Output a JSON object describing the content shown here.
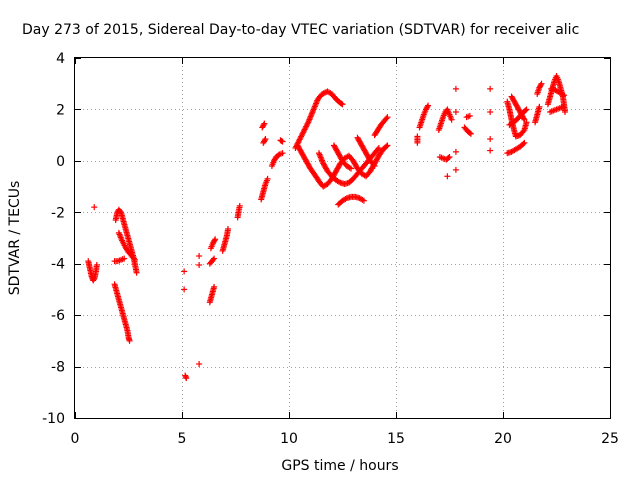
{
  "chart_data": {
    "type": "scatter",
    "title": "Day 273 of 2015, Sidereal Day-to-day VTEC variation (SDTVAR) for receiver alic",
    "xlabel": "GPS time / hours",
    "ylabel": "SDTVAR / TECUs",
    "xlim": [
      0,
      25
    ],
    "ylim": [
      -10,
      4
    ],
    "xticks": [
      0,
      5,
      10,
      15,
      20,
      25
    ],
    "yticks": [
      -10,
      -8,
      -6,
      -4,
      -2,
      0,
      2,
      4
    ],
    "grid": true,
    "marker": "plus",
    "color": "#ff0000",
    "series": [
      {
        "segments": [
          [
            [
              0.62,
              -3.9
            ],
            [
              0.7,
              -4.2
            ],
            [
              0.78,
              -4.5
            ],
            [
              0.85,
              -4.65
            ],
            [
              0.92,
              -4.55
            ],
            [
              0.98,
              -4.3
            ],
            [
              1.02,
              -4.05
            ]
          ],
          [
            [
              0.9,
              -1.8
            ]
          ],
          [
            [
              1.85,
              -3.9
            ],
            [
              2.0,
              -3.9
            ],
            [
              2.15,
              -3.85
            ],
            [
              2.3,
              -3.8
            ]
          ],
          [
            [
              1.9,
              -2.3
            ],
            [
              1.98,
              -2.0
            ],
            [
              2.05,
              -1.9
            ],
            [
              2.15,
              -2.0
            ],
            [
              2.25,
              -2.3
            ],
            [
              2.35,
              -2.6
            ],
            [
              2.45,
              -2.9
            ],
            [
              2.55,
              -3.2
            ],
            [
              2.65,
              -3.5
            ],
            [
              2.75,
              -3.8
            ],
            [
              2.82,
              -4.1
            ],
            [
              2.88,
              -4.35
            ]
          ],
          [
            [
              2.05,
              -2.8
            ],
            [
              2.2,
              -3.1
            ],
            [
              2.35,
              -3.35
            ],
            [
              2.5,
              -3.55
            ],
            [
              2.65,
              -3.7
            ],
            [
              2.8,
              -3.85
            ]
          ],
          [
            [
              1.85,
              -4.8
            ],
            [
              1.95,
              -5.1
            ],
            [
              2.05,
              -5.4
            ],
            [
              2.15,
              -5.7
            ],
            [
              2.25,
              -6.0
            ],
            [
              2.35,
              -6.3
            ],
            [
              2.45,
              -6.6
            ],
            [
              2.5,
              -6.85
            ],
            [
              2.55,
              -7.0
            ]
          ],
          [
            [
              5.1,
              -4.3
            ]
          ],
          [
            [
              5.1,
              -5.0
            ]
          ],
          [
            [
              5.15,
              -8.35
            ],
            [
              5.2,
              -8.45
            ]
          ],
          [
            [
              5.8,
              -3.7
            ]
          ],
          [
            [
              5.8,
              -4.05
            ]
          ],
          [
            [
              5.8,
              -7.9
            ]
          ],
          [
            [
              6.3,
              -5.5
            ],
            [
              6.4,
              -5.2
            ],
            [
              6.5,
              -4.9
            ]
          ],
          [
            [
              6.3,
              -4.0
            ],
            [
              6.4,
              -3.9
            ],
            [
              6.5,
              -3.8
            ]
          ],
          [
            [
              6.35,
              -3.4
            ],
            [
              6.45,
              -3.2
            ],
            [
              6.55,
              -3.05
            ]
          ],
          [
            [
              6.9,
              -3.5
            ],
            [
              7.0,
              -3.2
            ],
            [
              7.1,
              -2.9
            ],
            [
              7.15,
              -2.65
            ]
          ],
          [
            [
              7.6,
              -2.2
            ],
            [
              7.65,
              -1.95
            ],
            [
              7.7,
              -1.75
            ]
          ],
          [
            [
              8.7,
              -1.5
            ],
            [
              8.8,
              -1.2
            ],
            [
              8.9,
              -0.9
            ],
            [
              9.0,
              -0.7
            ]
          ],
          [
            [
              8.75,
              1.3
            ],
            [
              8.85,
              1.45
            ]
          ],
          [
            [
              8.8,
              0.7
            ],
            [
              8.9,
              0.85
            ]
          ],
          [
            [
              9.2,
              -0.2
            ],
            [
              9.3,
              0.0
            ],
            [
              9.4,
              0.15
            ],
            [
              9.55,
              0.25
            ],
            [
              9.7,
              0.3
            ]
          ],
          [
            [
              9.6,
              0.8
            ],
            [
              9.7,
              0.75
            ]
          ],
          [
            [
              10.3,
              0.5
            ],
            [
              10.6,
              1.0
            ],
            [
              10.9,
              1.5
            ],
            [
              11.15,
              2.0
            ],
            [
              11.35,
              2.4
            ],
            [
              11.55,
              2.6
            ],
            [
              11.8,
              2.7
            ],
            [
              12.0,
              2.6
            ],
            [
              12.2,
              2.4
            ],
            [
              12.4,
              2.25
            ],
            [
              12.5,
              2.2
            ]
          ],
          [
            [
              10.4,
              0.6
            ],
            [
              10.6,
              0.3
            ],
            [
              10.8,
              0.0
            ],
            [
              11.0,
              -0.3
            ],
            [
              11.25,
              -0.6
            ],
            [
              11.45,
              -0.85
            ],
            [
              11.6,
              -1.0
            ],
            [
              11.8,
              -0.9
            ],
            [
              12.0,
              -0.7
            ],
            [
              12.2,
              -0.4
            ],
            [
              12.4,
              -0.1
            ],
            [
              12.6,
              0.1
            ],
            [
              12.8,
              0.2
            ],
            [
              13.0,
              0.0
            ],
            [
              13.2,
              -0.3
            ],
            [
              13.4,
              -0.5
            ],
            [
              13.6,
              -0.6
            ],
            [
              13.8,
              -0.4
            ],
            [
              14.0,
              -0.1
            ],
            [
              14.2,
              0.2
            ],
            [
              14.4,
              0.45
            ],
            [
              14.6,
              0.6
            ]
          ],
          [
            [
              11.4,
              0.3
            ],
            [
              11.6,
              -0.1
            ],
            [
              11.8,
              -0.4
            ],
            [
              12.0,
              -0.6
            ],
            [
              12.2,
              -0.75
            ],
            [
              12.4,
              -0.85
            ],
            [
              12.6,
              -0.9
            ],
            [
              12.8,
              -0.85
            ],
            [
              13.0,
              -0.7
            ],
            [
              13.2,
              -0.5
            ],
            [
              13.4,
              -0.3
            ],
            [
              13.6,
              -0.1
            ],
            [
              13.8,
              0.1
            ],
            [
              14.0,
              0.3
            ],
            [
              14.2,
              0.5
            ]
          ],
          [
            [
              12.1,
              0.6
            ],
            [
              12.3,
              0.3
            ],
            [
              12.5,
              0.0
            ],
            [
              12.7,
              -0.2
            ],
            [
              12.9,
              -0.3
            ]
          ],
          [
            [
              13.2,
              0.9
            ],
            [
              13.4,
              0.6
            ],
            [
              13.6,
              0.3
            ],
            [
              13.8,
              0.0
            ],
            [
              14.0,
              -0.2
            ]
          ],
          [
            [
              14.0,
              1.0
            ],
            [
              14.15,
              1.2
            ],
            [
              14.3,
              1.4
            ],
            [
              14.45,
              1.55
            ],
            [
              14.6,
              1.7
            ]
          ],
          [
            [
              12.3,
              -1.7
            ],
            [
              12.5,
              -1.55
            ],
            [
              12.7,
              -1.45
            ],
            [
              12.9,
              -1.4
            ],
            [
              13.1,
              -1.4
            ],
            [
              13.3,
              -1.45
            ],
            [
              13.5,
              -1.55
            ]
          ],
          [
            [
              16.0,
              0.7
            ],
            [
              16.0,
              0.95
            ]
          ],
          [
            [
              16.1,
              1.3
            ],
            [
              16.2,
              1.55
            ],
            [
              16.3,
              1.8
            ],
            [
              16.4,
              2.0
            ],
            [
              16.5,
              2.15
            ]
          ],
          [
            [
              17.0,
              1.2
            ],
            [
              17.1,
              1.45
            ],
            [
              17.2,
              1.7
            ],
            [
              17.3,
              1.9
            ],
            [
              17.4,
              2.0
            ],
            [
              17.5,
              1.8
            ],
            [
              17.6,
              1.6
            ]
          ],
          [
            [
              17.05,
              0.15
            ],
            [
              17.2,
              0.1
            ],
            [
              17.35,
              0.05
            ],
            [
              17.5,
              0.15
            ]
          ],
          [
            [
              17.4,
              -0.6
            ]
          ],
          [
            [
              17.8,
              2.8
            ]
          ],
          [
            [
              17.8,
              1.9
            ]
          ],
          [
            [
              17.8,
              -0.35
            ]
          ],
          [
            [
              17.8,
              0.35
            ]
          ],
          [
            [
              18.2,
              1.3
            ],
            [
              18.35,
              1.15
            ],
            [
              18.5,
              1.05
            ]
          ],
          [
            [
              18.3,
              1.7
            ],
            [
              18.45,
              1.75
            ]
          ],
          [
            [
              19.4,
              2.8
            ]
          ],
          [
            [
              19.4,
              1.9
            ]
          ],
          [
            [
              19.4,
              0.85
            ]
          ],
          [
            [
              19.4,
              0.4
            ]
          ],
          [
            [
              20.2,
              0.3
            ],
            [
              20.4,
              0.35
            ],
            [
              20.6,
              0.45
            ],
            [
              20.8,
              0.55
            ],
            [
              21.0,
              0.7
            ]
          ],
          [
            [
              20.2,
              2.3
            ],
            [
              20.3,
              2.0
            ],
            [
              20.4,
              1.6
            ],
            [
              20.5,
              1.25
            ],
            [
              20.6,
              0.95
            ],
            [
              20.8,
              1.0
            ],
            [
              21.0,
              1.2
            ],
            [
              21.1,
              1.5
            ]
          ],
          [
            [
              20.3,
              1.4
            ],
            [
              20.5,
              1.5
            ],
            [
              20.7,
              1.65
            ],
            [
              20.9,
              1.85
            ],
            [
              21.1,
              2.0
            ]
          ],
          [
            [
              20.4,
              2.5
            ],
            [
              20.6,
              2.2
            ],
            [
              20.8,
              1.9
            ],
            [
              21.0,
              1.6
            ]
          ],
          [
            [
              21.5,
              1.5
            ],
            [
              21.6,
              1.8
            ],
            [
              21.7,
              2.1
            ]
          ],
          [
            [
              21.6,
              2.6
            ],
            [
              21.7,
              2.85
            ],
            [
              21.8,
              3.0
            ]
          ],
          [
            [
              22.1,
              2.2
            ],
            [
              22.2,
              2.5
            ],
            [
              22.3,
              2.8
            ],
            [
              22.4,
              3.1
            ],
            [
              22.5,
              3.3
            ],
            [
              22.6,
              3.1
            ],
            [
              22.7,
              2.8
            ],
            [
              22.8,
              2.5
            ],
            [
              22.85,
              2.2
            ],
            [
              22.9,
              1.9
            ]
          ],
          [
            [
              22.2,
              1.9
            ],
            [
              22.35,
              1.95
            ],
            [
              22.5,
              2.0
            ],
            [
              22.65,
              2.05
            ],
            [
              22.8,
              2.1
            ]
          ],
          [
            [
              22.25,
              2.8
            ],
            [
              22.45,
              2.75
            ],
            [
              22.65,
              2.65
            ],
            [
              22.85,
              2.55
            ]
          ]
        ]
      }
    ]
  }
}
